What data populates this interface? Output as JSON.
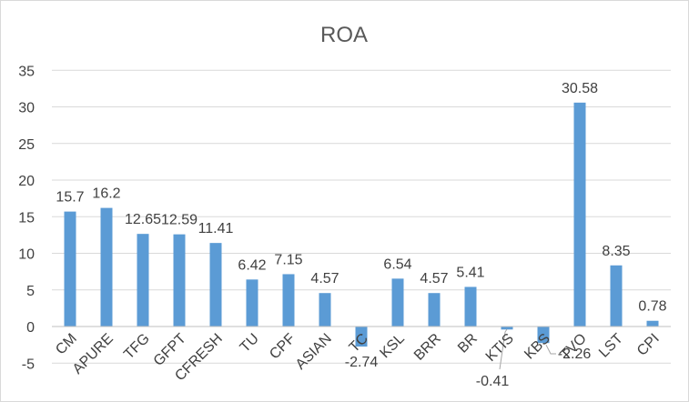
{
  "chart_data": {
    "type": "bar",
    "title": "ROA",
    "xlabel": "",
    "ylabel": "",
    "ylim": [
      -5,
      35
    ],
    "yticks": [
      -5,
      0,
      5,
      10,
      15,
      20,
      25,
      30,
      35
    ],
    "grid": true,
    "legend": "none",
    "bar_color": "#5b9bd5",
    "categories": [
      "CM",
      "APURE",
      "TFG",
      "GFPT",
      "CFRESH",
      "TU",
      "CPF",
      "ASIAN",
      "TC",
      "KSL",
      "BRR",
      "BR",
      "KTIS",
      "KBS",
      "TVO",
      "LST",
      "CPI"
    ],
    "values": [
      15.7,
      16.2,
      12.65,
      12.59,
      11.41,
      6.42,
      7.15,
      4.57,
      -2.74,
      6.54,
      4.57,
      5.41,
      -0.41,
      -2.26,
      30.58,
      8.35,
      0.78
    ],
    "data_labels": [
      "15.7",
      "16.2",
      "12.65",
      "12.59",
      "11.41",
      "6.42",
      "7.15",
      "4.57",
      "-2.74",
      "6.54",
      "4.57",
      "5.41",
      "-0.41",
      "-2.26",
      "30.58",
      "8.35",
      "0.78"
    ]
  }
}
